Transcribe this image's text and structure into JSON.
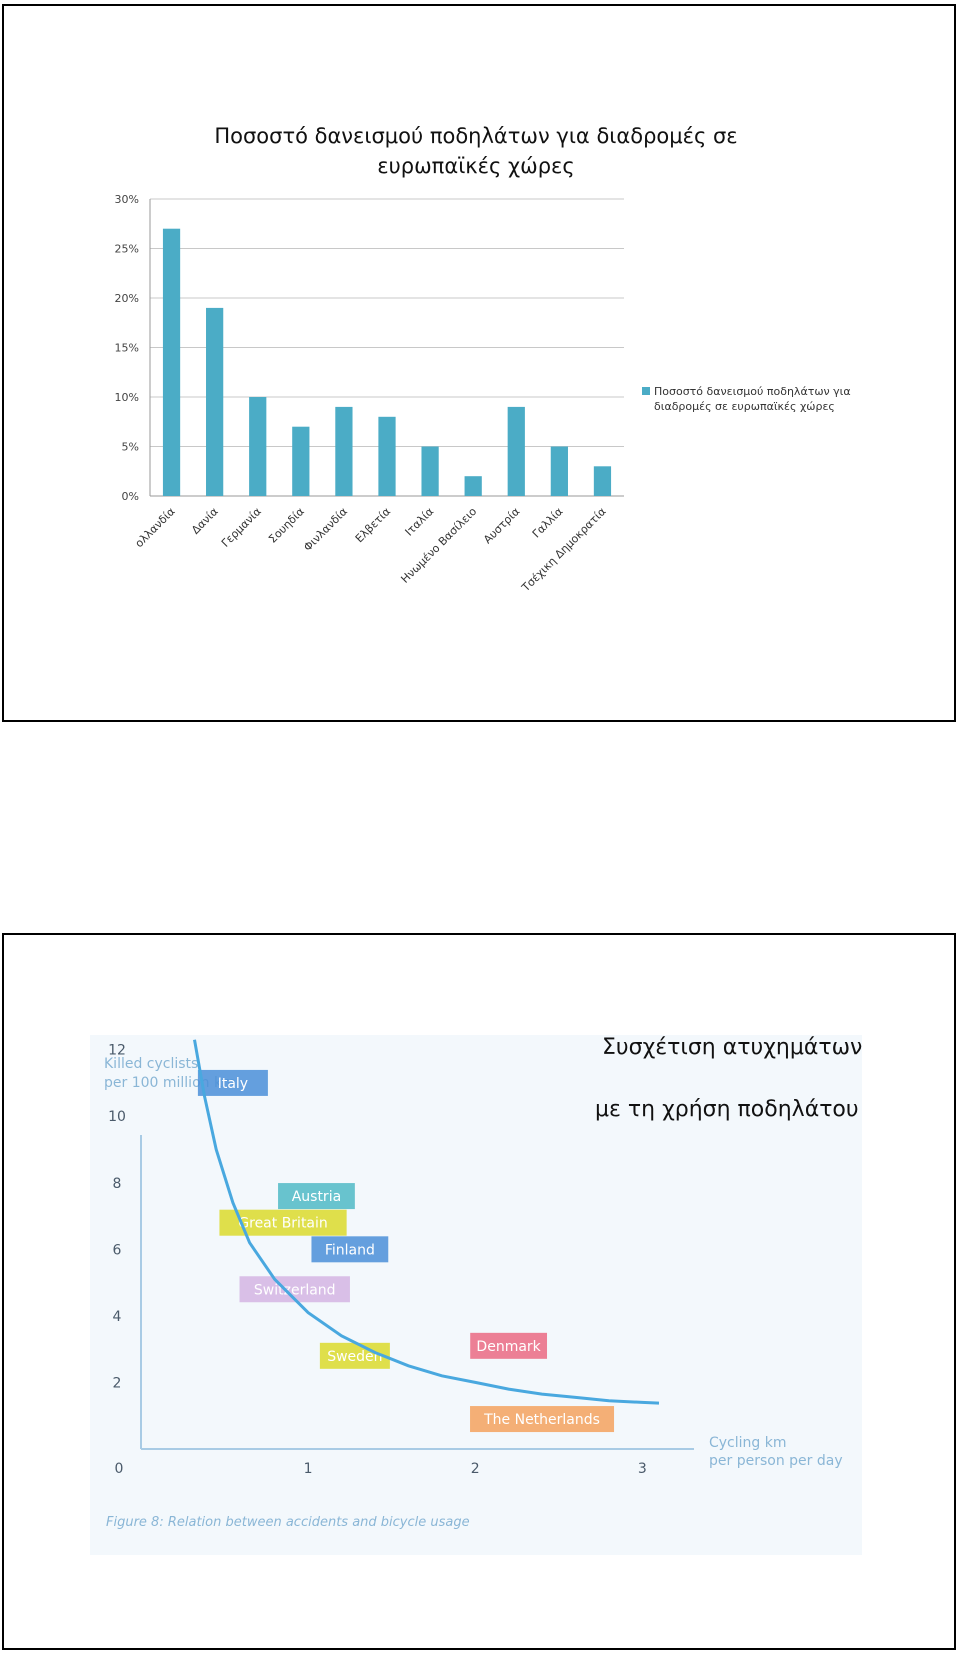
{
  "slide1": {
    "chart_data": {
      "type": "bar",
      "title_lines": [
        "Ποσοστό δανεισμού ποδηλάτων για διαδρομές σε",
        "ευρωπαϊκές χώρες"
      ],
      "categories": [
        "ολλανδία",
        "Δανία",
        "Γερμανία",
        "Σουηδία",
        "Φινλανδία",
        "Ελβετία",
        "Ιταλία",
        "Ηνωμένο Βασίλειο",
        "Αυστρία",
        "Γαλλία",
        "Τσέχικη Δημοκρατία"
      ],
      "series": [
        {
          "name": "Ποσοστό δανεισμού ποδηλάτων για διαδρομές σε ευρωπαϊκές χώρες",
          "legend_lines": [
            "Ποσοστό δανεισμού ποδηλάτων για",
            "διαδρομές σε ευρωπαϊκές χώρες"
          ],
          "values": [
            27,
            19,
            10,
            7,
            9,
            8,
            5,
            2,
            9,
            5,
            3
          ]
        }
      ],
      "y_ticks": [
        "0%",
        "5%",
        "10%",
        "15%",
        "20%",
        "25%",
        "30%"
      ],
      "ylim": [
        0,
        30
      ],
      "grid": true,
      "legend_position": "right",
      "bar_color": "#4bacc6"
    }
  },
  "slide2": {
    "caption_lines": [
      "Συσχέτιση ατυχημάτων",
      "με τη χρήση ποδηλάτου"
    ],
    "chart_data": {
      "type": "line",
      "ylabel_lines": [
        "Killed cyclists",
        "per 100 million km"
      ],
      "xlabel_lines": [
        "Cycling km",
        "per person per day"
      ],
      "x_ticks": [
        "0",
        "1",
        "2",
        "3"
      ],
      "y_ticks": [
        "2",
        "4",
        "6",
        "8",
        "10",
        "12"
      ],
      "xlim": [
        0,
        3.1
      ],
      "ylim": [
        0,
        12.5
      ],
      "curve": {
        "x": [
          0.32,
          0.38,
          0.45,
          0.55,
          0.65,
          0.8,
          1.0,
          1.2,
          1.4,
          1.6,
          1.8,
          2.0,
          2.2,
          2.4,
          2.6,
          2.8,
          3.0,
          3.1
        ],
        "y": [
          12.3,
          10.6,
          9.0,
          7.4,
          6.2,
          5.1,
          4.1,
          3.4,
          2.9,
          2.5,
          2.2,
          2.0,
          1.8,
          1.65,
          1.55,
          1.45,
          1.4,
          1.38
        ]
      },
      "countries": [
        {
          "name": "Italy",
          "x": 0.55,
          "y": 11.0,
          "color": "#4a8fd8"
        },
        {
          "name": "Austria",
          "x": 1.05,
          "y": 7.6,
          "color": "#4fbac5"
        },
        {
          "name": "Great Britain",
          "x": 0.85,
          "y": 6.8,
          "color": "#dada2c"
        },
        {
          "name": "Finland",
          "x": 1.25,
          "y": 6.0,
          "color": "#4a8fd8"
        },
        {
          "name": "Switzerland",
          "x": 0.92,
          "y": 4.8,
          "color": "#d4b5e3"
        },
        {
          "name": "Sweden",
          "x": 1.28,
          "y": 2.8,
          "color": "#dada2c"
        },
        {
          "name": "Denmark",
          "x": 2.2,
          "y": 3.1,
          "color": "#ea6a82"
        },
        {
          "name": "The Netherlands",
          "x": 2.4,
          "y": 0.9,
          "color": "#f3a25e"
        }
      ],
      "figure_caption": "Figure 8: Relation between accidents and bicycle usage"
    }
  }
}
